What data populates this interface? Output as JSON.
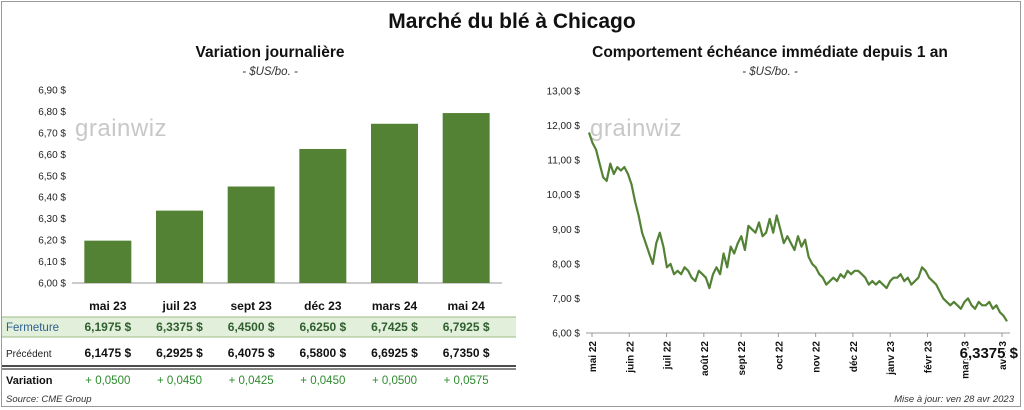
{
  "title": "Marché du blé à Chicago",
  "watermark": "grainwiz",
  "source": "Source: CME Group",
  "updated": "Mise à jour: ven 28 avr 2023",
  "left": {
    "title": "Variation  journalière",
    "subtitle": "- $US/bo. -",
    "rows": {
      "close_label": "Fermeture",
      "prev_label": "Précédent",
      "var_label": "Variation",
      "close": [
        "6,1975  $",
        "6,3375  $",
        "6,4500  $",
        "6,6250  $",
        "6,7425  $",
        "6,7925  $"
      ],
      "prev": [
        "6,1475  $",
        "6,2925  $",
        "6,4075  $",
        "6,5800  $",
        "6,6925  $",
        "6,7350  $"
      ],
      "var": [
        "+ 0,0500",
        "+ 0,0450",
        "+ 0,0425",
        "+ 0,0450",
        "+ 0,0500",
        "+ 0,0575"
      ]
    }
  },
  "right": {
    "title": "Comportement  échéance immédiate depuis 1 an",
    "subtitle": "- $US/bo. -",
    "last_value": "6,3375 $"
  },
  "colors": {
    "bar": "#548235",
    "line": "#548235",
    "close_row_bg": "#e2efda",
    "positive": "#2e8b2e"
  },
  "chart_data": [
    {
      "type": "bar",
      "categories": [
        "mai 23",
        "juil 23",
        "sept 23",
        "déc 23",
        "mars 24",
        "mai 24"
      ],
      "values": [
        6.1975,
        6.3375,
        6.45,
        6.625,
        6.7425,
        6.7925
      ],
      "ylim": [
        6.0,
        6.9
      ],
      "yticks": [
        "6,00 $",
        "6,10 $",
        "6,20 $",
        "6,30 $",
        "6,40 $",
        "6,50 $",
        "6,60 $",
        "6,70 $",
        "6,80 $",
        "6,90 $"
      ],
      "grid": false
    },
    {
      "type": "line",
      "ylim": [
        6.0,
        13.0
      ],
      "yticks": [
        "6,00 $",
        "7,00 $",
        "8,00 $",
        "9,00 $",
        "10,00 $",
        "11,00 $",
        "12,00 $",
        "13,00 $"
      ],
      "xticks": [
        "mai 22",
        "juin 22",
        "juil 22",
        "août 22",
        "sept 22",
        "oct 22",
        "nov 22",
        "déc 22",
        "janv 23",
        "févr 23",
        "mars 23",
        "avr 23"
      ],
      "series": [
        {
          "values": [
            11.8,
            11.5,
            11.3,
            10.9,
            10.5,
            10.4,
            10.9,
            10.6,
            10.8,
            10.7,
            10.8,
            10.6,
            10.3,
            9.8,
            9.4,
            8.9,
            8.6,
            8.3,
            8.0,
            8.6,
            8.9,
            8.5,
            7.9,
            8.0,
            7.7,
            7.8,
            7.7,
            7.9,
            7.8,
            7.6,
            7.5,
            7.8,
            7.7,
            7.6,
            7.3,
            7.7,
            7.9,
            7.7,
            8.3,
            7.9,
            8.5,
            8.3,
            8.6,
            8.8,
            8.4,
            9.1,
            9.0,
            8.9,
            9.2,
            8.8,
            8.9,
            9.3,
            8.9,
            9.4,
            9.0,
            8.6,
            8.8,
            8.6,
            8.4,
            8.8,
            8.5,
            8.7,
            8.2,
            8.0,
            7.9,
            7.7,
            7.6,
            7.4,
            7.5,
            7.6,
            7.5,
            7.7,
            7.6,
            7.8,
            7.7,
            7.8,
            7.8,
            7.7,
            7.6,
            7.4,
            7.5,
            7.4,
            7.5,
            7.4,
            7.3,
            7.5,
            7.6,
            7.6,
            7.7,
            7.5,
            7.6,
            7.4,
            7.5,
            7.6,
            7.9,
            7.8,
            7.6,
            7.5,
            7.4,
            7.2,
            7.0,
            6.9,
            6.8,
            6.9,
            6.8,
            6.7,
            6.9,
            7.0,
            6.8,
            6.7,
            6.9,
            6.8,
            6.8,
            6.9,
            6.7,
            6.8,
            6.6,
            6.5,
            6.3375
          ]
        }
      ]
    }
  ]
}
